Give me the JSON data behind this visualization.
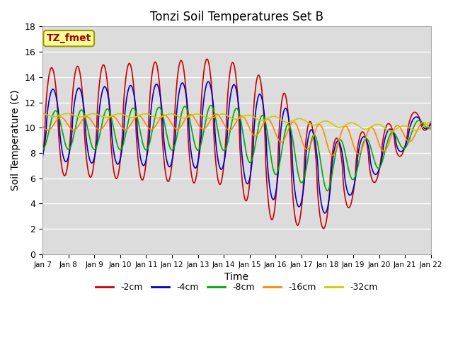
{
  "title": "Tonzi Soil Temperatures Set B",
  "xlabel": "Time",
  "ylabel": "Soil Temperature (C)",
  "ylim": [
    0,
    18
  ],
  "xtick_labels": [
    "Jan 7",
    "Jan 8",
    "Jan 9",
    "Jan 10",
    "Jan 11",
    "Jan 12",
    "Jan 13",
    "Jan 14",
    "Jan 15",
    "Jan 16",
    "Jan 17",
    "Jan 18",
    "Jan 19",
    "Jan 20",
    "Jan 21",
    "Jan 22"
  ],
  "annotation": "TZ_fmet",
  "annotation_color": "#aa0000",
  "annotation_bg": "#ffff99",
  "plot_bg": "#dcdcdc",
  "series": [
    {
      "label": "-2cm",
      "color": "#cc0000"
    },
    {
      "label": "-4cm",
      "color": "#0000cc"
    },
    {
      "label": "-8cm",
      "color": "#00aa00"
    },
    {
      "label": "-16cm",
      "color": "#ff8800"
    },
    {
      "label": "-32cm",
      "color": "#cccc00"
    }
  ],
  "legend_ncol": 5,
  "font_size": 10,
  "title_fontsize": 12,
  "line_width": 1.2
}
